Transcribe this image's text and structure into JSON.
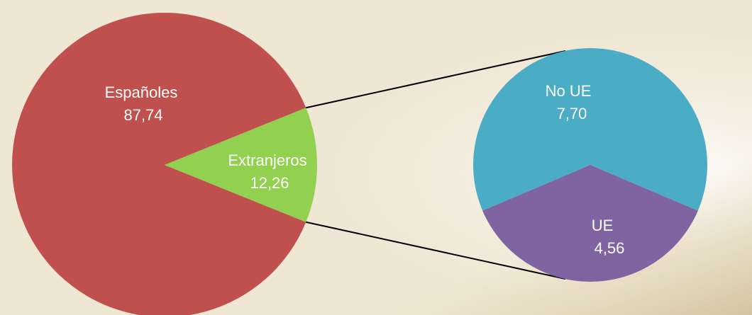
{
  "colors": {
    "background": "#efe7d3",
    "connector": "#000000",
    "label_text": "#ffffff"
  },
  "chart_data": [
    {
      "type": "pie",
      "slices": [
        {
          "label": "Españoles",
          "value": 87.74,
          "value_label": "87,74",
          "color": "#c0504d"
        },
        {
          "label": "Extranjeros",
          "value": 12.26,
          "value_label": "12,26",
          "color": "#92d050"
        }
      ]
    },
    {
      "type": "pie",
      "slices": [
        {
          "label": "No UE",
          "value": 7.7,
          "value_label": "7,70",
          "color": "#4bacc6"
        },
        {
          "label": "UE",
          "value": 4.56,
          "value_label": "4,56",
          "color": "#8064a2"
        }
      ]
    }
  ]
}
